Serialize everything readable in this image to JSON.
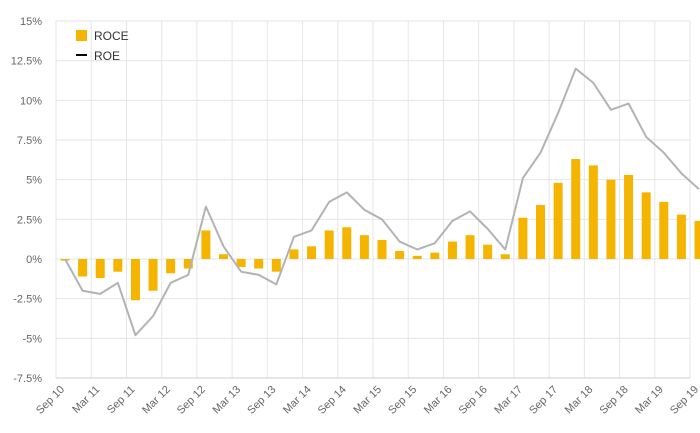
{
  "chart_data": {
    "type": "bar",
    "title": "",
    "xlabel": "",
    "ylabel": "",
    "ylim": [
      -7.5,
      15
    ],
    "yticks": [
      15,
      12.5,
      10,
      7.5,
      5,
      2.5,
      0,
      -2.5,
      -5,
      -7.5
    ],
    "ytick_labels": [
      "15%",
      "12.5%",
      "10%",
      "7.5%",
      "5%",
      "2.5%",
      "0%",
      "-2.5%",
      "-5%",
      "-7.5%"
    ],
    "grid": true,
    "legend_position": "top-left",
    "categories": [
      "Sep 10",
      "Dec 10",
      "Mar 11",
      "Jun 11",
      "Sep 11",
      "Dec 11",
      "Mar 12",
      "Jun 12",
      "Sep 12",
      "Dec 12",
      "Mar 13",
      "Jun 13",
      "Sep 13",
      "Dec 13",
      "Mar 14",
      "Jun 14",
      "Sep 14",
      "Dec 14",
      "Mar 15",
      "Jun 15",
      "Sep 15",
      "Dec 15",
      "Mar 16",
      "Jun 16",
      "Sep 16",
      "Dec 16",
      "Mar 17",
      "Jun 17",
      "Sep 17",
      "Dec 17",
      "Mar 18",
      "Jun 18",
      "Sep 18",
      "Dec 18",
      "Mar 19",
      "Jun 19",
      "Sep 19"
    ],
    "x_tick_labels": [
      "Sep 10",
      "Mar 11",
      "Sep 11",
      "Mar 12",
      "Sep 12",
      "Mar 13",
      "Sep 13",
      "Mar 14",
      "Sep 14",
      "Mar 15",
      "Sep 15",
      "Mar 16",
      "Sep 16",
      "Mar 17",
      "Sep 17",
      "Mar 18",
      "Sep 18",
      "Mar 19",
      "Sep 19"
    ],
    "series": [
      {
        "name": "ROCE",
        "type": "bar",
        "color": "#f5b400",
        "values": [
          -0.1,
          -1.1,
          -1.2,
          -0.8,
          -2.6,
          -2.0,
          -0.9,
          -0.6,
          1.8,
          0.3,
          -0.5,
          -0.6,
          -0.8,
          0.6,
          0.8,
          1.8,
          2.0,
          1.5,
          1.2,
          0.5,
          0.2,
          0.4,
          1.1,
          1.5,
          0.9,
          0.3,
          2.6,
          3.4,
          4.8,
          6.3,
          5.9,
          5.0,
          5.3,
          4.2,
          3.6,
          2.8,
          2.4
        ]
      },
      {
        "name": "ROE",
        "type": "line",
        "color": "#b3b3b3",
        "values": [
          0.0,
          -2.0,
          -2.2,
          -1.5,
          -4.8,
          -3.6,
          -1.5,
          -1.0,
          3.3,
          0.8,
          -0.8,
          -1.0,
          -1.6,
          1.4,
          1.8,
          3.6,
          4.2,
          3.1,
          2.5,
          1.1,
          0.6,
          1.0,
          2.4,
          3.0,
          1.9,
          0.6,
          5.1,
          6.7,
          9.2,
          12.0,
          11.1,
          9.4,
          9.8,
          7.7,
          6.7,
          5.4,
          4.4
        ]
      }
    ],
    "legend": [
      {
        "label": "ROCE",
        "symbol": "square",
        "color": "#f5b400"
      },
      {
        "label": "ROE",
        "symbol": "line",
        "color": "#000000"
      }
    ],
    "colors": {
      "grid": "#e6e6e6",
      "axis": "#cccccc",
      "tick_text": "#666666"
    }
  }
}
